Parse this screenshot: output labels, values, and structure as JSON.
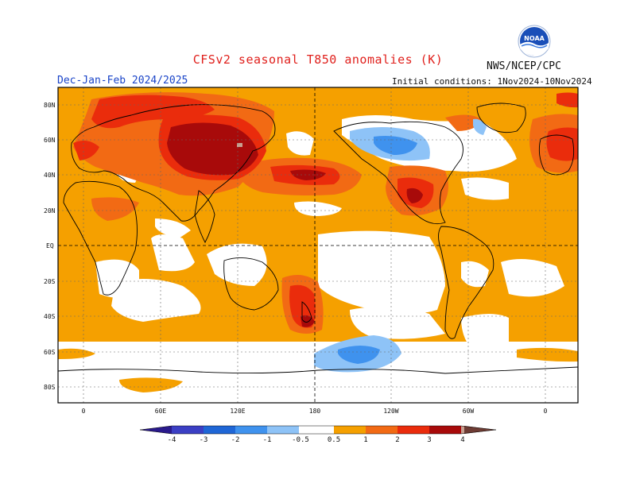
{
  "header": {
    "title": "CFSv2 seasonal T850 anomalies (K)",
    "agency": "NWS/NCEP/CPC",
    "season": "Dec-Jan-Feb 2024/2025",
    "initial_conditions": "Initial conditions: 1Nov2024-10Nov2024",
    "logo_text": "NOAA"
  },
  "map": {
    "lat_labels": [
      "80N",
      "60N",
      "40N",
      "20N",
      "EQ",
      "20S",
      "40S",
      "60S",
      "80S"
    ],
    "lon_labels": [
      "0",
      "60E",
      "120E",
      "180",
      "120W",
      "60W",
      "0"
    ]
  },
  "colorbar": {
    "labels": [
      "-4",
      "-3",
      "-2",
      "-1",
      "-0.5",
      "0.5",
      "1",
      "2",
      "3",
      "4"
    ],
    "colors": {
      "lt_minus_4": "#2a1a8c",
      "minus_4_3": "#3b3fc4",
      "minus_3_2": "#1f66d6",
      "minus_2_1": "#3f92ee",
      "minus_1_05": "#8ec3f7",
      "neutral": "#ffffff",
      "p05_1": "#f5a000",
      "p1_2": "#f26a14",
      "p2_3": "#ea2c0c",
      "p3_4": "#a80a0a",
      "p4_5": "#c8a090",
      "gt_5": "#6e3c34"
    }
  }
}
